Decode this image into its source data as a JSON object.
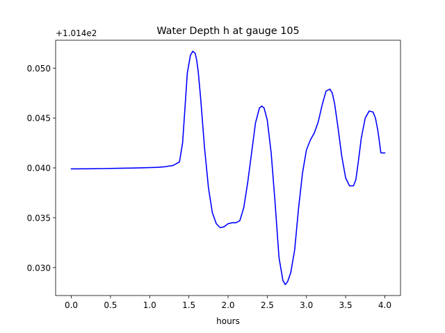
{
  "chart_data": {
    "type": "line",
    "title": "Water Depth h at gauge 105",
    "xlabel": "hours",
    "ylabel": "",
    "offset_label": "+1.014e2",
    "xlim": [
      -0.2,
      4.2
    ],
    "ylim": [
      0.0272,
      0.0528
    ],
    "xticks": [
      0.0,
      0.5,
      1.0,
      1.5,
      2.0,
      2.5,
      3.0,
      3.5,
      4.0
    ],
    "xtick_labels": [
      "0.0",
      "0.5",
      "1.0",
      "1.5",
      "2.0",
      "2.5",
      "3.0",
      "3.5",
      "4.0"
    ],
    "yticks": [
      0.03,
      0.035,
      0.04,
      0.045,
      0.05
    ],
    "ytick_labels": [
      "0.030",
      "0.035",
      "0.040",
      "0.045",
      "0.050"
    ],
    "grid": false,
    "series": [
      {
        "color": "#0000ff",
        "x": [
          0.0,
          0.2,
          0.4,
          0.6,
          0.8,
          1.0,
          1.1,
          1.2,
          1.3,
          1.38,
          1.42,
          1.45,
          1.48,
          1.52,
          1.55,
          1.58,
          1.6,
          1.62,
          1.65,
          1.7,
          1.75,
          1.8,
          1.85,
          1.9,
          1.95,
          2.0,
          2.05,
          2.1,
          2.15,
          2.2,
          2.25,
          2.3,
          2.35,
          2.4,
          2.43,
          2.46,
          2.5,
          2.55,
          2.6,
          2.65,
          2.7,
          2.73,
          2.76,
          2.8,
          2.85,
          2.9,
          2.95,
          3.0,
          3.05,
          3.1,
          3.15,
          3.2,
          3.25,
          3.3,
          3.33,
          3.36,
          3.4,
          3.45,
          3.5,
          3.55,
          3.6,
          3.63,
          3.66,
          3.7,
          3.75,
          3.8,
          3.85,
          3.88,
          3.91,
          3.95,
          4.0
        ],
        "y": [
          0.0399,
          0.03991,
          0.03993,
          0.03996,
          0.03999,
          0.04003,
          0.04006,
          0.04012,
          0.04025,
          0.0406,
          0.0425,
          0.046,
          0.0495,
          0.0513,
          0.0517,
          0.0515,
          0.0508,
          0.0496,
          0.047,
          0.042,
          0.038,
          0.0355,
          0.0344,
          0.034,
          0.0341,
          0.0344,
          0.0345,
          0.0345,
          0.0347,
          0.036,
          0.0385,
          0.0415,
          0.0445,
          0.046,
          0.0462,
          0.046,
          0.0448,
          0.0415,
          0.0365,
          0.031,
          0.0287,
          0.0283,
          0.0286,
          0.0295,
          0.0318,
          0.036,
          0.0395,
          0.0418,
          0.0428,
          0.0435,
          0.0446,
          0.0463,
          0.0477,
          0.0479,
          0.0475,
          0.0464,
          0.0442,
          0.0412,
          0.039,
          0.0382,
          0.0382,
          0.0388,
          0.0405,
          0.043,
          0.045,
          0.0457,
          0.0456,
          0.045,
          0.0438,
          0.0415,
          0.0415
        ]
      }
    ]
  }
}
